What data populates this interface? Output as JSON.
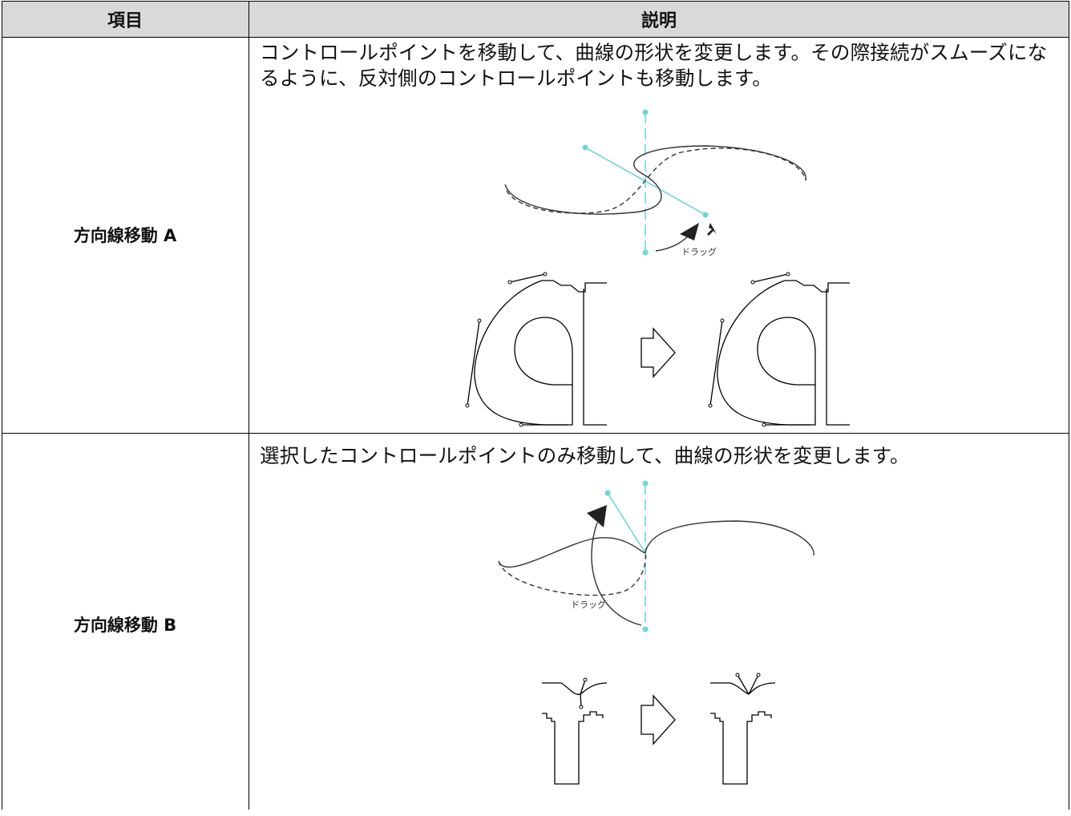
{
  "table": {
    "header": [
      "項目",
      "説明"
    ],
    "rows": [
      {
        "item": "方向線移動 A",
        "description": "コントロールポイントを移動して、曲線の形状を変更します。その際接続がスムーズになるように、反対側のコントロールポイントも移動します。",
        "figure_label": "ドラッグ"
      },
      {
        "item": "方向線移動 B",
        "description": "選択したコントロールポイントのみ移動して、曲線の形状を変更します。",
        "figure_label": "ドラッグ"
      }
    ]
  }
}
